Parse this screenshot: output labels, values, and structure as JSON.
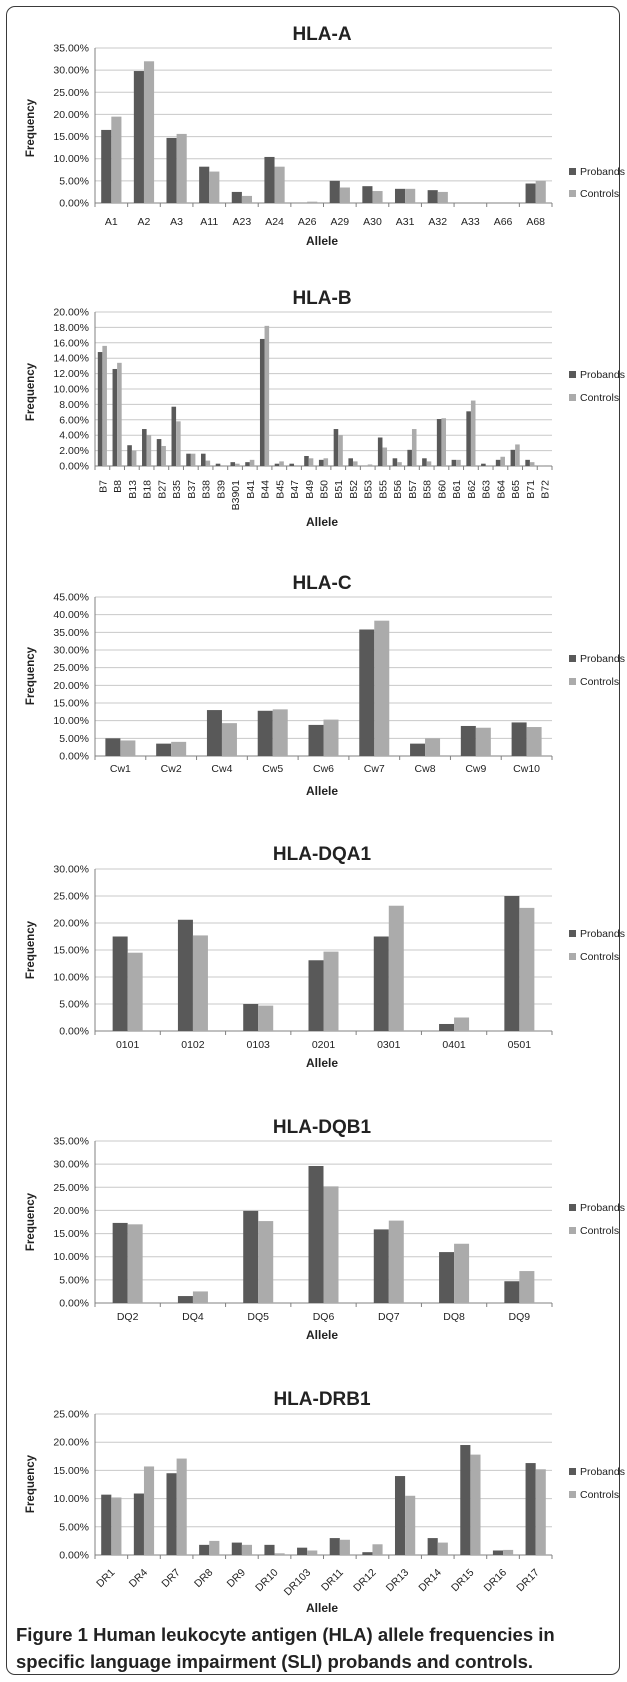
{
  "caption": {
    "label": "Figure 1",
    "text": "Human leukocyte antigen (HLA) allele frequencies in specific language impairment (SLI) probands and controls."
  },
  "colors": {
    "probands": "#595959",
    "controls": "#ababab",
    "grid": "#c8c8c8",
    "axis": "#808080"
  },
  "chart_data": [
    {
      "type": "bar",
      "title": "HLA-A",
      "xlabel": "Allele",
      "ylabel": "Frequency",
      "ylim": [
        0,
        35
      ],
      "yticks": [
        "0.00%",
        "5.00%",
        "10.00%",
        "15.00%",
        "20.00%",
        "25.00%",
        "30.00%",
        "35.00%"
      ],
      "legend": "right",
      "categories": [
        "A1",
        "A2",
        "A3",
        "A11",
        "A23",
        "A24",
        "A26",
        "A29",
        "A30",
        "A31",
        "A32",
        "A33",
        "A66",
        "A68"
      ],
      "series": [
        {
          "name": "Probands",
          "values": [
            16.5,
            29.8,
            14.7,
            8.2,
            2.5,
            10.4,
            0,
            5.0,
            3.8,
            3.2,
            2.9,
            0,
            0,
            4.4
          ]
        },
        {
          "name": "Controls",
          "values": [
            19.5,
            32.0,
            15.6,
            7.1,
            1.6,
            8.2,
            0.3,
            3.5,
            2.7,
            3.2,
            2.5,
            0,
            0,
            5.0
          ]
        }
      ]
    },
    {
      "type": "bar",
      "title": "HLA-B",
      "xlabel": "Allele",
      "ylabel": "Frequency",
      "ylim": [
        0,
        20
      ],
      "yticks": [
        "0.00%",
        "2.00%",
        "4.00%",
        "6.00%",
        "8.00%",
        "10.00%",
        "12.00%",
        "14.00%",
        "16.00%",
        "18.00%",
        "20.00%"
      ],
      "legend": "right",
      "categories": [
        "B7",
        "B8",
        "B13",
        "B18",
        "B27",
        "B35",
        "B37",
        "B38",
        "B39",
        "B3901",
        "B41",
        "B44",
        "B45",
        "B47",
        "B49",
        "B50",
        "B51",
        "B52",
        "B53",
        "B55",
        "B56",
        "B57",
        "B58",
        "B60",
        "B61",
        "B62",
        "B63",
        "B64",
        "B65",
        "B71",
        "B72"
      ],
      "series": [
        {
          "name": "Probands",
          "values": [
            14.8,
            12.6,
            2.7,
            4.8,
            3.5,
            7.7,
            1.6,
            1.6,
            0.3,
            0.5,
            0.5,
            16.5,
            0.3,
            0.3,
            1.3,
            0.8,
            4.8,
            1.0,
            0,
            3.7,
            1.0,
            2.1,
            1.0,
            6.1,
            0.8,
            7.1,
            0.3,
            0.8,
            2.1,
            0.8,
            0
          ]
        },
        {
          "name": "Controls",
          "values": [
            15.6,
            13.4,
            2.0,
            4.0,
            2.6,
            5.8,
            1.6,
            0.7,
            0,
            0.3,
            0.8,
            18.2,
            0.6,
            0,
            1.0,
            1.0,
            4.0,
            0.6,
            0.2,
            2.4,
            0.5,
            4.8,
            0.6,
            6.2,
            0.8,
            8.5,
            0,
            1.2,
            2.8,
            0.5,
            0.1
          ]
        }
      ]
    },
    {
      "type": "bar",
      "title": "HLA-C",
      "xlabel": "Allele",
      "ylabel": "Frequency",
      "ylim": [
        0,
        45
      ],
      "yticks": [
        "0.00%",
        "5.00%",
        "10.00%",
        "15.00%",
        "20.00%",
        "25.00%",
        "30.00%",
        "35.00%",
        "40.00%",
        "45.00%"
      ],
      "legend": "right",
      "categories": [
        "Cw1",
        "Cw2",
        "Cw4",
        "Cw5",
        "Cw6",
        "Cw7",
        "Cw8",
        "Cw9",
        "Cw10"
      ],
      "series": [
        {
          "name": "Probands",
          "values": [
            5.0,
            3.5,
            13.0,
            12.8,
            8.8,
            35.8,
            3.5,
            8.5,
            9.5
          ]
        },
        {
          "name": "Controls",
          "values": [
            4.4,
            4.0,
            9.3,
            13.2,
            10.3,
            38.3,
            5.0,
            8.0,
            8.2
          ]
        }
      ]
    },
    {
      "type": "bar",
      "title": "HLA-DQA1",
      "xlabel": "Allele",
      "ylabel": "Frequency",
      "ylim": [
        0,
        30
      ],
      "yticks": [
        "0.00%",
        "5.00%",
        "10.00%",
        "15.00%",
        "20.00%",
        "25.00%",
        "30.00%"
      ],
      "legend": "right",
      "categories": [
        "0101",
        "0102",
        "0103",
        "0201",
        "0301",
        "0401",
        "0501"
      ],
      "series": [
        {
          "name": "Probands",
          "values": [
            17.5,
            20.6,
            5.0,
            13.1,
            17.5,
            1.3,
            25.0
          ]
        },
        {
          "name": "Controls",
          "values": [
            14.5,
            17.7,
            4.7,
            14.7,
            23.2,
            2.5,
            22.8
          ]
        }
      ]
    },
    {
      "type": "bar",
      "title": "HLA-DQB1",
      "xlabel": "Allele",
      "ylabel": "Frequency",
      "ylim": [
        0,
        35
      ],
      "yticks": [
        "0.00%",
        "5.00%",
        "10.00%",
        "15.00%",
        "20.00%",
        "25.00%",
        "30.00%",
        "35.00%"
      ],
      "legend": "right",
      "categories": [
        "DQ2",
        "DQ4",
        "DQ5",
        "DQ6",
        "DQ7",
        "DQ8",
        "DQ9"
      ],
      "series": [
        {
          "name": "Probands",
          "values": [
            17.3,
            1.5,
            19.9,
            29.6,
            15.9,
            11.0,
            4.7
          ]
        },
        {
          "name": "Controls",
          "values": [
            17.0,
            2.5,
            17.7,
            25.2,
            17.8,
            12.8,
            6.9
          ]
        }
      ]
    },
    {
      "type": "bar",
      "title": "HLA-DRB1",
      "xlabel": "Allele",
      "ylabel": "Frequency",
      "ylim": [
        0,
        25
      ],
      "yticks": [
        "0.00%",
        "5.00%",
        "10.00%",
        "15.00%",
        "20.00%",
        "25.00%"
      ],
      "legend": "right",
      "categories": [
        "DR1",
        "DR4",
        "DR7",
        "DR8",
        "DR9",
        "DR10",
        "DR103",
        "DR11",
        "DR12",
        "DR13",
        "DR14",
        "DR15",
        "DR16",
        "DR17"
      ],
      "series": [
        {
          "name": "Probands",
          "values": [
            10.7,
            10.9,
            14.5,
            1.8,
            2.2,
            1.8,
            1.3,
            3.0,
            0.5,
            14.0,
            3.0,
            19.5,
            0.8,
            16.3
          ]
        },
        {
          "name": "Controls",
          "values": [
            10.2,
            15.7,
            17.1,
            2.5,
            1.8,
            0.3,
            0.8,
            2.7,
            1.9,
            10.5,
            2.2,
            17.8,
            0.9,
            15.2
          ]
        }
      ]
    }
  ]
}
